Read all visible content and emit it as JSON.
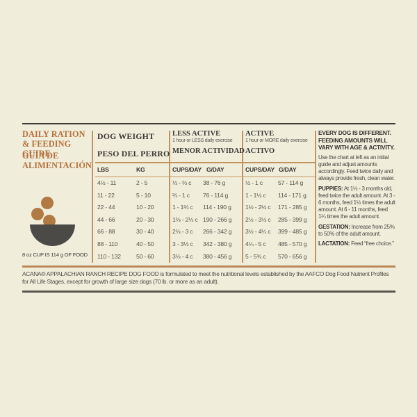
{
  "colors": {
    "background": "#f0eddb",
    "accent_brown": "#b5713c",
    "rule_tan": "#c0935f",
    "rule_dark": "#3e3c37",
    "text_dark": "#3a3935",
    "text_body": "#56544c",
    "bowl_gray": "#4b4a46",
    "kibble_brown": "#b07a42"
  },
  "left_panel": {
    "title_en": "DAILY RATION & FEEDING GUIDE",
    "title_es": "GUIA DE ALIMENTACIÓN",
    "cup_note": "8 oz CUP IS 114 g OF FOOD"
  },
  "table": {
    "dog_weight": {
      "title_en": "DOG WEIGHT",
      "title_es": "PESO DEL PERRO",
      "col1": "LBS",
      "col2": "KG"
    },
    "less_active": {
      "title_en": "LESS ACTIVE",
      "subtitle": "1 hour or LESS daily exercise",
      "title_es": "MENOR ACTIVIDAD",
      "col1": "CUPS/DAY",
      "col2": "G/DAY"
    },
    "active": {
      "title_en": "ACTIVE",
      "subtitle": "1 hour or MORE daily exercise",
      "title_es": "ACTIVO",
      "col1": "CUPS/DAY",
      "col2": "G/DAY"
    },
    "columns": {
      "lbs": [
        "4½ - 11",
        "11 - 22",
        "22 - 44",
        "44 - 66",
        "66 - 88",
        "88 - 110",
        "110 - 132"
      ],
      "kg": [
        "2 - 5",
        "5 - 10",
        "10 - 20",
        "20 - 30",
        "30 - 40",
        "40 - 50",
        "50 - 60"
      ],
      "less_active_cups": [
        "⅓ - ⅔ c",
        "⅔ - 1 c",
        "1 - 1⅔ c",
        "1⅔ - 2⅓ c",
        "2⅓ - 3 c",
        "3 - 3⅓ c",
        "3⅓ - 4 c"
      ],
      "less_active_grams": [
        "38 - 76 g",
        "76 - 114 g",
        "114 - 190 g",
        "190 - 266 g",
        "266 - 342 g",
        "342 - 380 g",
        "380 - 456 g"
      ],
      "active_cups": [
        "½ - 1 c",
        "1 - 1½ c",
        "1½ - 2½ c",
        "2½ - 3½ c",
        "3½ - 4¼ c",
        "4¼ - 5 c",
        "5 - 5¾ c"
      ],
      "active_grams": [
        "57 - 114 g",
        "114 - 171 g",
        "171 - 285 g",
        "285 - 399 g",
        "399 - 485 g",
        "485 - 570 g",
        "570 - 656 g"
      ]
    }
  },
  "right_panel": {
    "heading": "EVERY DOG IS DIFFERENT. FEEDING AMOUNTS WILL VARY WITH AGE & ACTIVITY.",
    "intro": "Use the chart at left as an initial guide and adjust amounts accordingly. Feed twice daily and always provide fresh, clean water.",
    "puppies_label": "PUPPIES:",
    "puppies_text": "At 1½ - 3 months old, feed twice the adult amount. At 3 - 6 months, feed 1½ times the adult amount. At 6 - 11 months, feed 1¼ times the adult amount.",
    "gestation_label": "GESTATION:",
    "gestation_text": "Increase from 25% to 50% of the adult amount.",
    "lactation_label": "LACTATION:",
    "lactation_text": "Feed “free choice.”"
  },
  "footer": {
    "statement": "ACANA® APPALACHIAN RANCH RECIPE DOG FOOD is formulated to meet the nutritional levels established by the AAFCO Dog Food Nutrient Profiles for All Life Stages, except for growth of large size dogs (70 lb. or more as an adult)."
  }
}
